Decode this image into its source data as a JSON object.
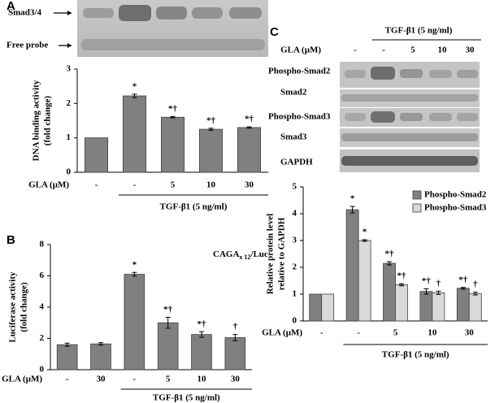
{
  "chart_data": [
    {
      "type": "bar",
      "panel": "A",
      "blot_labels": [
        "Smad3/4",
        "Free probe"
      ],
      "ylabel": [
        "DNA binding activity",
        "(fold change)"
      ],
      "row_label": "GLA (μM)",
      "categories": [
        "-",
        "-",
        "5",
        "10",
        "30"
      ],
      "values": [
        1.0,
        2.22,
        1.6,
        1.25,
        1.3
      ],
      "errors": [
        null,
        0.05,
        0.02,
        0.03,
        0.02
      ],
      "annotations": [
        null,
        "*",
        "*†",
        "*†",
        "*†"
      ],
      "groups": [
        {
          "label": "TGF-β1 (5 ng/ml)",
          "start": 1,
          "end": 4
        }
      ],
      "color": "#808080",
      "ylim": [
        0,
        3
      ],
      "yticks": [
        0,
        1,
        2,
        3
      ]
    },
    {
      "type": "bar",
      "panel": "B",
      "inset": {
        "text": "CAGA",
        "subscript": "x 12",
        "suffix": "/Luc"
      },
      "ylabel": [
        "Luciferase activity",
        "(fold change)"
      ],
      "row_label": "GLA (μM)",
      "categories": [
        "-",
        "30",
        "-",
        "5",
        "10",
        "30"
      ],
      "values": [
        1.6,
        1.65,
        6.1,
        3.0,
        2.25,
        2.05
      ],
      "errors": [
        0.1,
        0.08,
        0.12,
        0.35,
        0.18,
        0.2
      ],
      "annotations": [
        null,
        null,
        "*",
        "*†",
        "*†",
        "†"
      ],
      "groups": [
        {
          "label": "TGF-β1 (5 ng/ml)",
          "start": 2,
          "end": 5
        }
      ],
      "color": "#808080",
      "ylim": [
        0,
        8
      ],
      "yticks": [
        0,
        2,
        4,
        6,
        8
      ]
    },
    {
      "type": "grouped_bar",
      "panel": "C",
      "blot_labels": [
        "Phospho-Smad2",
        "Smad2",
        "Phospho-Smad3",
        "Smad3",
        "GAPDH"
      ],
      "ylabel": [
        "Relative protein level",
        "relative to GAPDH"
      ],
      "row_label": "GLA (μM)",
      "categories": [
        "-",
        "-",
        "5",
        "10",
        "30"
      ],
      "series": [
        {
          "name": "Phospho-Smad2",
          "color": "#808080",
          "values": [
            1.0,
            4.15,
            2.15,
            1.1,
            1.22
          ],
          "errors": [
            null,
            0.12,
            0.06,
            0.1,
            0.03
          ],
          "annotations": [
            null,
            "*",
            "*†",
            "*†",
            "*†"
          ]
        },
        {
          "name": "Phospho-Smad3",
          "color": "#d9d9d9",
          "values": [
            1.0,
            3.0,
            1.35,
            1.05,
            1.02
          ],
          "errors": [
            null,
            0.03,
            0.04,
            0.06,
            0.05
          ],
          "annotations": [
            null,
            "*",
            "*†",
            "†",
            "†"
          ]
        }
      ],
      "groups": [
        {
          "label": "TGF-β1 (5 ng/ml)",
          "start": 1,
          "end": 4
        }
      ],
      "legend": "upper right",
      "ylim": [
        0,
        5
      ],
      "yticks": [
        0,
        1,
        2,
        3,
        4,
        5
      ]
    }
  ]
}
